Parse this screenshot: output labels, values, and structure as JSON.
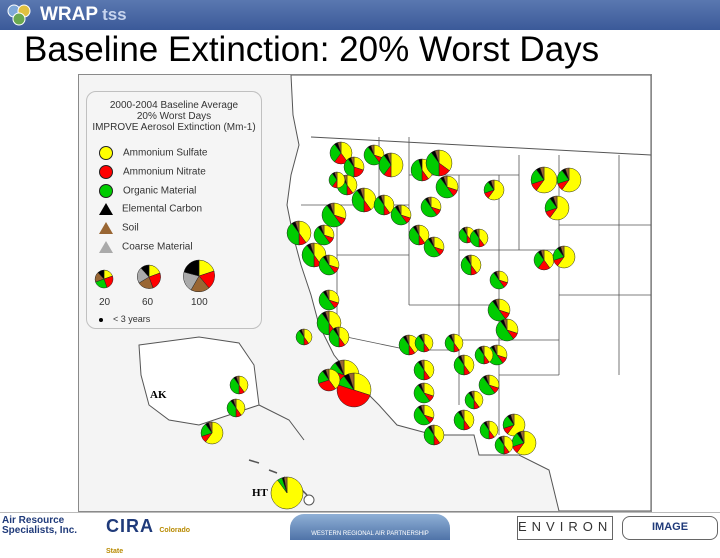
{
  "header": {
    "brand": "WRAP",
    "brand_suffix": "tss",
    "title": "Baseline Extinction:  20% Worst Days"
  },
  "legend": {
    "title_line1": "2000-2004 Baseline Average",
    "title_line2": "20% Worst Days",
    "title_line3": "IMPROVE Aerosol Extinction (Mm-1)",
    "items": [
      {
        "label": "Ammonium Sulfate",
        "color": "#ffff00"
      },
      {
        "label": "Ammonium Nitrate",
        "color": "#ff0000"
      },
      {
        "label": "Organic Material",
        "color": "#00cc00"
      },
      {
        "label": "Elemental Carbon",
        "color": "#000000"
      },
      {
        "label": "Soil",
        "color": "#996633"
      },
      {
        "label": "Coarse Material",
        "color": "#aaaaaa"
      }
    ],
    "size_labels": [
      "20",
      "60",
      "100"
    ],
    "three_years": "< 3 years"
  },
  "map": {
    "label_ak": "AK",
    "label_hi": "HT"
  },
  "footer": {
    "ars_line1": "Air Resource",
    "ars_line2": "Specialists, Inc.",
    "cira": "CIRA",
    "csu": "Colorado State",
    "wrap": "WESTERN REGIONAL AIR PARTNERSHIP",
    "environ": "ENVIRON",
    "image": "IMAGE"
  }
}
